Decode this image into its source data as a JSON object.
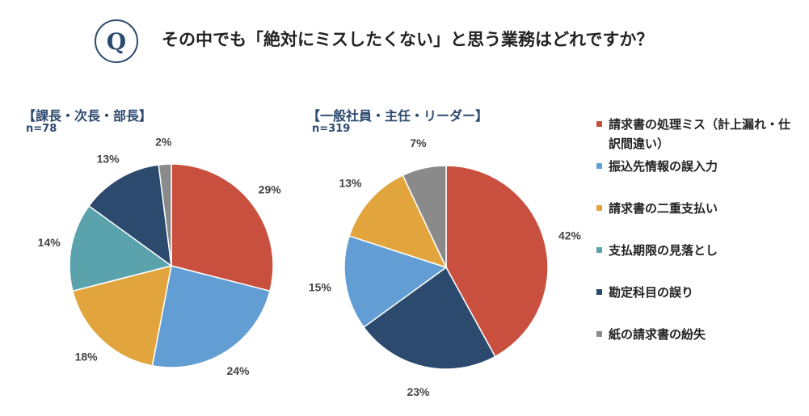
{
  "header": {
    "badge": "Q",
    "question": "その中でも「絶対にミスしたくない」と思う業務はどれですか？"
  },
  "legend": {
    "items": [
      {
        "label": "請求書の処理ミス（計上漏れ・仕訳間違い）",
        "color": "#c9503f"
      },
      {
        "label": "振込先情報の誤入力",
        "color": "#629ed3"
      },
      {
        "label": "請求書の二重支払い",
        "color": "#e2a53d"
      },
      {
        "label": "支払期限の見落とし",
        "color": "#5aa3ad"
      },
      {
        "label": "勘定科目の誤り",
        "color": "#2b4a6e"
      },
      {
        "label": "紙の請求書の紛失",
        "color": "#8a8a8a"
      }
    ]
  },
  "chart_data": [
    {
      "type": "pie",
      "title": "【課長・次長・部長】",
      "subtitle": "n=78",
      "categories": [
        "請求書の処理ミス（計上漏れ・仕訳間違い）",
        "振込先情報の誤入力",
        "請求書の二重支払い",
        "支払期限の見落とし",
        "勘定科目の誤り",
        "紙の請求書の紛失"
      ],
      "values": [
        29,
        24,
        18,
        14,
        13,
        2
      ],
      "labels": [
        "29%",
        "24%",
        "18%",
        "14%",
        "13%",
        "2%"
      ]
    },
    {
      "type": "pie",
      "title": "【一般社員・主任・リーダー】",
      "subtitle": "n=319",
      "categories": [
        "請求書の処理ミス（計上漏れ・仕訳間違い）",
        "勘定科目の誤り",
        "振込先情報の誤入力",
        "請求書の二重支払い",
        "紙の請求書の紛失"
      ],
      "values": [
        42,
        23,
        15,
        13,
        7
      ],
      "labels": [
        "42%",
        "23%",
        "15%",
        "13%",
        "7%"
      ],
      "colors": [
        "#c9503f",
        "#2b4a6e",
        "#629ed3",
        "#e2a53d",
        "#8a8a8a"
      ]
    }
  ]
}
